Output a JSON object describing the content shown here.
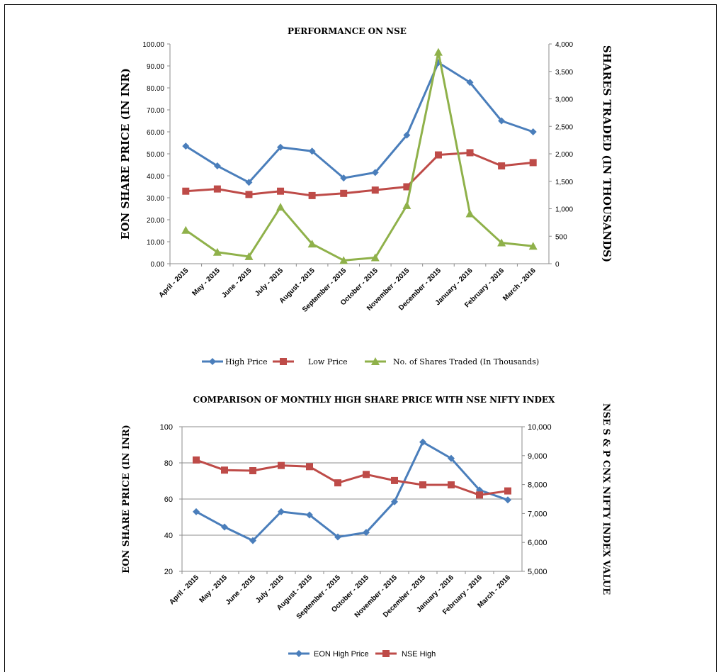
{
  "chart_data": [
    {
      "type": "line",
      "title": "PERFORMANCE ON NSE",
      "ylabel": "EON SHARE PRICE (IN INR)",
      "y2label": "SHARES TRADED (IN THOUSANDS)",
      "ylim": [
        0,
        100
      ],
      "y2lim": [
        0,
        4000
      ],
      "yticks": [
        "100.00",
        "90.00",
        "80.00",
        "70.00",
        "60.00",
        "50.00",
        "40.00",
        "30.00",
        "20.00",
        "10.00",
        "0.00"
      ],
      "y2ticks": [
        "4,000",
        "3,500",
        "3,000",
        "2,500",
        "2,000",
        "1,500",
        "1,000",
        "500",
        "0"
      ],
      "grid": false,
      "legend": "bottom",
      "categories": [
        "April - 2015",
        "May - 2015",
        "June - 2015",
        "July - 2015",
        "August - 2015",
        "September - 2015",
        "October - 2015",
        "November - 2015",
        "December - 2015",
        "January - 2016",
        "February - 2016",
        "March - 2016"
      ],
      "series": [
        {
          "name": "High Price",
          "axis": "left",
          "color": "#4a7ebb",
          "marker": "diamond",
          "values": [
            53.5,
            44.5,
            37,
            53,
            51.2,
            39,
            41.5,
            58.5,
            91.5,
            82.5,
            65,
            60
          ]
        },
        {
          "name": "Low Price",
          "axis": "left",
          "color": "#be4b48",
          "marker": "square",
          "values": [
            33,
            34,
            31.5,
            33,
            31,
            32,
            33.5,
            35,
            49.5,
            50.5,
            44.5,
            46
          ]
        },
        {
          "name": "No. of Shares Traded (In Thousands)",
          "axis": "right",
          "color": "#8fb14a",
          "marker": "triangle",
          "values": [
            610,
            210,
            130,
            1030,
            360,
            60,
            110,
            1060,
            3850,
            910,
            380,
            320
          ]
        }
      ]
    },
    {
      "type": "line",
      "title": "COMPARISON OF MONTHLY HIGH SHARE PRICE WITH NSE NIFTY INDEX",
      "ylabel": "EON SHARE PRICE (IN INR)",
      "y2label": "NSE S & P CNX NIFTY INDEX VALUE",
      "ylim": [
        20,
        100
      ],
      "y2lim": [
        5000,
        10000
      ],
      "yticks": [
        "100",
        "80",
        "60",
        "40",
        "20"
      ],
      "y2ticks": [
        "10,000",
        "9,000",
        "8,000",
        "7,000",
        "6,000",
        "5,000"
      ],
      "grid": true,
      "legend": "bottom",
      "categories": [
        "April - 2015",
        "May - 2015",
        "June - 2015",
        "July - 2015",
        "August - 2015",
        "September - 2015",
        "October - 2015",
        "November - 2015",
        "December - 2015",
        "January - 2016",
        "February - 2016",
        "March - 2016"
      ],
      "series": [
        {
          "name": "EON High Price",
          "axis": "left",
          "color": "#4a7ebb",
          "marker": "diamond",
          "values": [
            53,
            44.5,
            37,
            53,
            51.2,
            39,
            41.5,
            58.5,
            91.5,
            82.5,
            65,
            59.5
          ]
        },
        {
          "name": "NSE High",
          "axis": "right",
          "color": "#be4b48",
          "marker": "square",
          "values": [
            8850,
            8500,
            8480,
            8660,
            8620,
            8060,
            8350,
            8140,
            7990,
            7990,
            7640,
            7780
          ]
        }
      ]
    }
  ]
}
